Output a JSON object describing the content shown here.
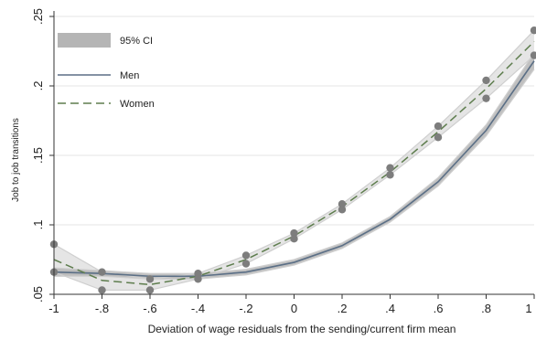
{
  "chart_data": {
    "type": "line",
    "title": "",
    "xlabel": "Deviation of wage residuals from the sending/current firm mean",
    "ylabel": "Job to job transitions",
    "xlim": [
      -1,
      1
    ],
    "ylim": [
      0.05,
      0.25
    ],
    "x_ticks": [
      -1,
      -0.8,
      -0.6,
      -0.4,
      -0.2,
      0,
      0.2,
      0.4,
      0.6,
      0.8,
      1
    ],
    "x_tick_labels": [
      "-1",
      "-.8",
      "-.6",
      "-.4",
      "-.2",
      "0",
      ".2",
      ".4",
      ".6",
      ".8",
      "1"
    ],
    "y_ticks": [
      0.05,
      0.1,
      0.15,
      0.2,
      0.25
    ],
    "y_tick_labels": [
      ".05",
      ".1",
      ".15",
      ".2",
      ".25"
    ],
    "grid": "horizontal",
    "legend": {
      "placement": "top-left",
      "items": [
        {
          "label": "95% CI",
          "kind": "band"
        },
        {
          "label": "Men",
          "kind": "solid"
        },
        {
          "label": "Women",
          "kind": "dashed"
        }
      ]
    },
    "x": [
      -1,
      -0.8,
      -0.6,
      -0.4,
      -0.2,
      0,
      0.2,
      0.4,
      0.6,
      0.8,
      1
    ],
    "series": [
      {
        "name": "Men",
        "style": "solid",
        "color": "#5b6f86",
        "values": [
          0.066,
          0.065,
          0.063,
          0.063,
          0.066,
          0.073,
          0.085,
          0.104,
          0.131,
          0.168,
          0.218
        ],
        "ci_lower": [
          0.063,
          0.063,
          0.061,
          0.061,
          0.064,
          0.071,
          0.083,
          0.102,
          0.128,
          0.164,
          0.212
        ],
        "ci_upper": [
          0.069,
          0.067,
          0.065,
          0.065,
          0.068,
          0.075,
          0.087,
          0.106,
          0.134,
          0.172,
          0.224
        ]
      },
      {
        "name": "Women",
        "style": "dashed",
        "color": "#5e7d4e",
        "values": [
          0.075,
          0.06,
          0.057,
          0.063,
          0.075,
          0.092,
          0.113,
          0.138,
          0.167,
          0.198,
          0.232
        ],
        "ci_lower": [
          0.066,
          0.053,
          0.053,
          0.061,
          0.072,
          0.09,
          0.111,
          0.136,
          0.163,
          0.191,
          0.222
        ],
        "ci_upper": [
          0.086,
          0.066,
          0.061,
          0.065,
          0.078,
          0.094,
          0.115,
          0.141,
          0.171,
          0.204,
          0.24
        ]
      }
    ],
    "colors": {
      "ci_band": "#b5b5b5",
      "ci_bound_line": "#cfcfcf",
      "ci_marker": "#7d7d7d",
      "gridline": "#e4e4e4",
      "axis": "#333333"
    }
  }
}
